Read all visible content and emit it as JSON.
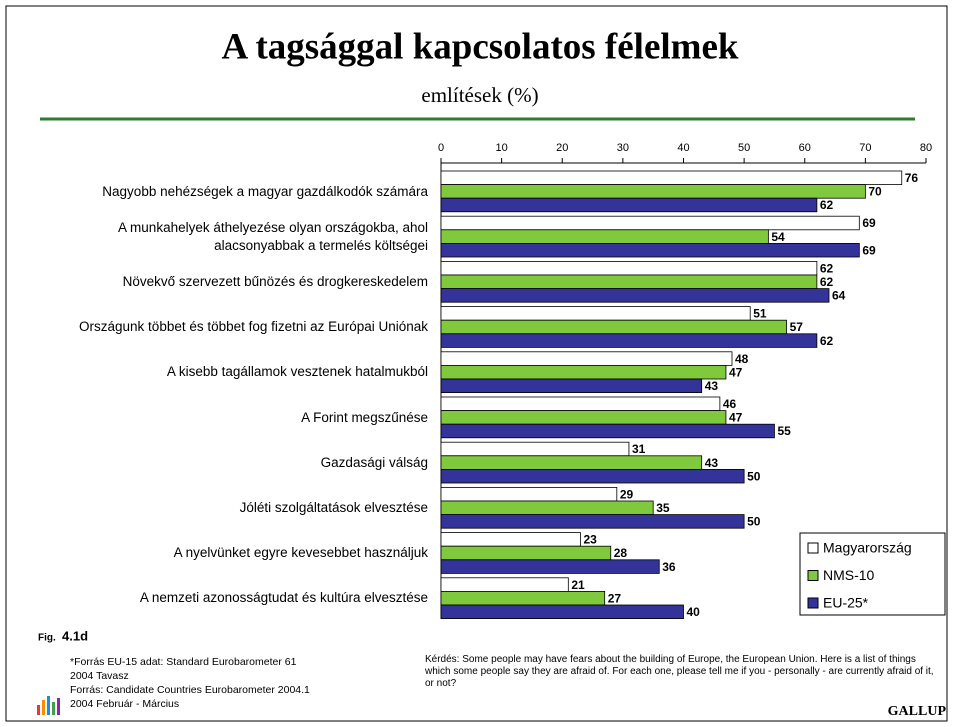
{
  "chart_data": {
    "type": "hbar",
    "title": "A tagsággal kapcsolatos félelmek",
    "subtitle": "említések (%)",
    "categories": [
      "Nagyobb nehézségek a magyar gazdálkodók számára",
      "A munkahelyek áthelyezése olyan országokba, ahol\nalacsonyabbak a termelés költségei",
      "Növekvő szervezett bűnözés és drogkereskedelem",
      "Országunk többet és többet fog fizetni az Európai Uniónak",
      "A kisebb tagállamok vesztenek hatalmukból",
      "A Forint megszűnése",
      "Gazdasági válság",
      "Jóléti szolgáltatások elvesztése",
      "A nyelvünket egyre kevesebbet használjuk",
      "A nemzeti azonosságtudat és kultúra elvesztése"
    ],
    "series": [
      {
        "name": "Magyarország",
        "color": "#ffffff",
        "values": [
          76,
          69,
          62,
          51,
          48,
          46,
          31,
          29,
          23,
          21
        ]
      },
      {
        "name": "NMS-10",
        "color": "#80c83c",
        "values": [
          70,
          54,
          62,
          57,
          47,
          47,
          43,
          35,
          28,
          27
        ]
      },
      {
        "name": "EU-25*",
        "color": "#333399",
        "values": [
          62,
          69,
          64,
          62,
          43,
          55,
          50,
          50,
          36,
          40
        ]
      }
    ],
    "xlim": [
      0,
      80
    ],
    "xticks": [
      0,
      10,
      20,
      30,
      40,
      50,
      60,
      70,
      80
    ],
    "legend": "lower right",
    "fig_label": "Fig.",
    "fig_number": "4.1d",
    "footnotes": [
      "*Forrás EU-15 adat: Standard Eurobarometer 61",
      "2004 Tavasz",
      "Forrás: Candidate Countries Eurobarometer 2004.1",
      "2004 Február - Március"
    ],
    "question": "Kérdés:  Some people may have fears about the building of Europe, the European Union. Here is a list of things which some people say they are afraid of. For each one, please tell me if you - personally - are currently afraid of it, or not?",
    "brand": "GALLUP"
  }
}
